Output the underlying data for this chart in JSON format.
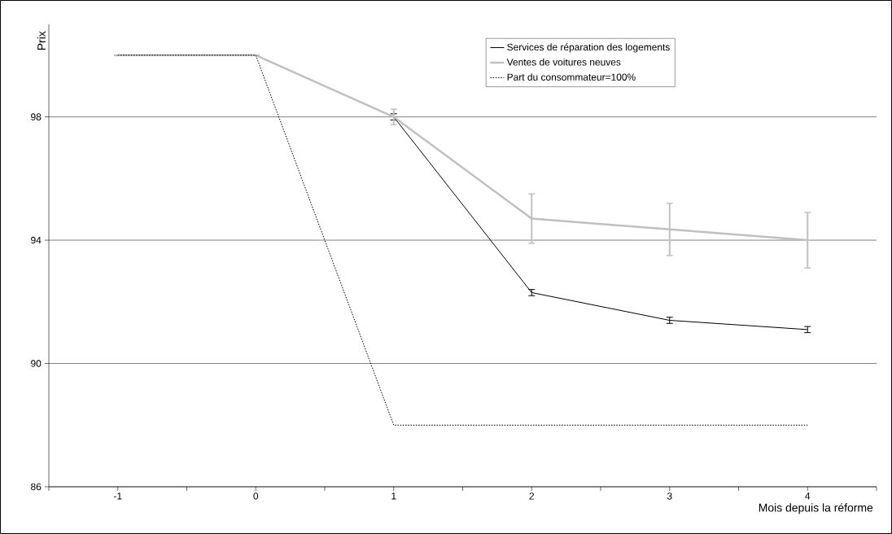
{
  "chart_data": {
    "type": "line",
    "xlabel": "Mois depuis la réforme",
    "ylabel": "Prix",
    "x": [
      -1,
      0,
      1,
      2,
      3,
      4
    ],
    "series": [
      {
        "name": "Services de réparation des logements",
        "color": "#000000",
        "line_style": "solid",
        "values": [
          100,
          100,
          98,
          92.3,
          91.4,
          91.1
        ],
        "errors": [
          null,
          null,
          0.1,
          0.1,
          0.1,
          0.1
        ]
      },
      {
        "name": "Ventes de voitures neuves",
        "color": "#c0c0c0",
        "line_style": "solid",
        "values": [
          100,
          100,
          98,
          94.7,
          94.35,
          94.0
        ],
        "errors": [
          null,
          null,
          0.25,
          0.8,
          0.85,
          0.9
        ]
      },
      {
        "name": "Part du consommateur=100%",
        "color": "#000000",
        "line_style": "dotted",
        "values": [
          100,
          100,
          88,
          88,
          88,
          88
        ]
      }
    ],
    "xlim": [
      -1.5,
      4.5
    ],
    "xticks": [
      {
        "value": -1.5,
        "label": null
      },
      -1,
      {
        "value": -0.5,
        "label": null
      },
      0,
      {
        "value": 0.5,
        "label": null
      },
      1,
      {
        "value": 1.5,
        "label": null
      },
      2,
      {
        "value": 2.5,
        "label": null
      },
      3,
      {
        "value": 3.5,
        "label": null
      },
      4,
      {
        "value": 4.5,
        "label": null
      }
    ],
    "ylim": [
      86,
      101
    ],
    "yticks": [
      86,
      90,
      94,
      98
    ],
    "grid": "y",
    "legend": "top right",
    "marker": "none"
  }
}
